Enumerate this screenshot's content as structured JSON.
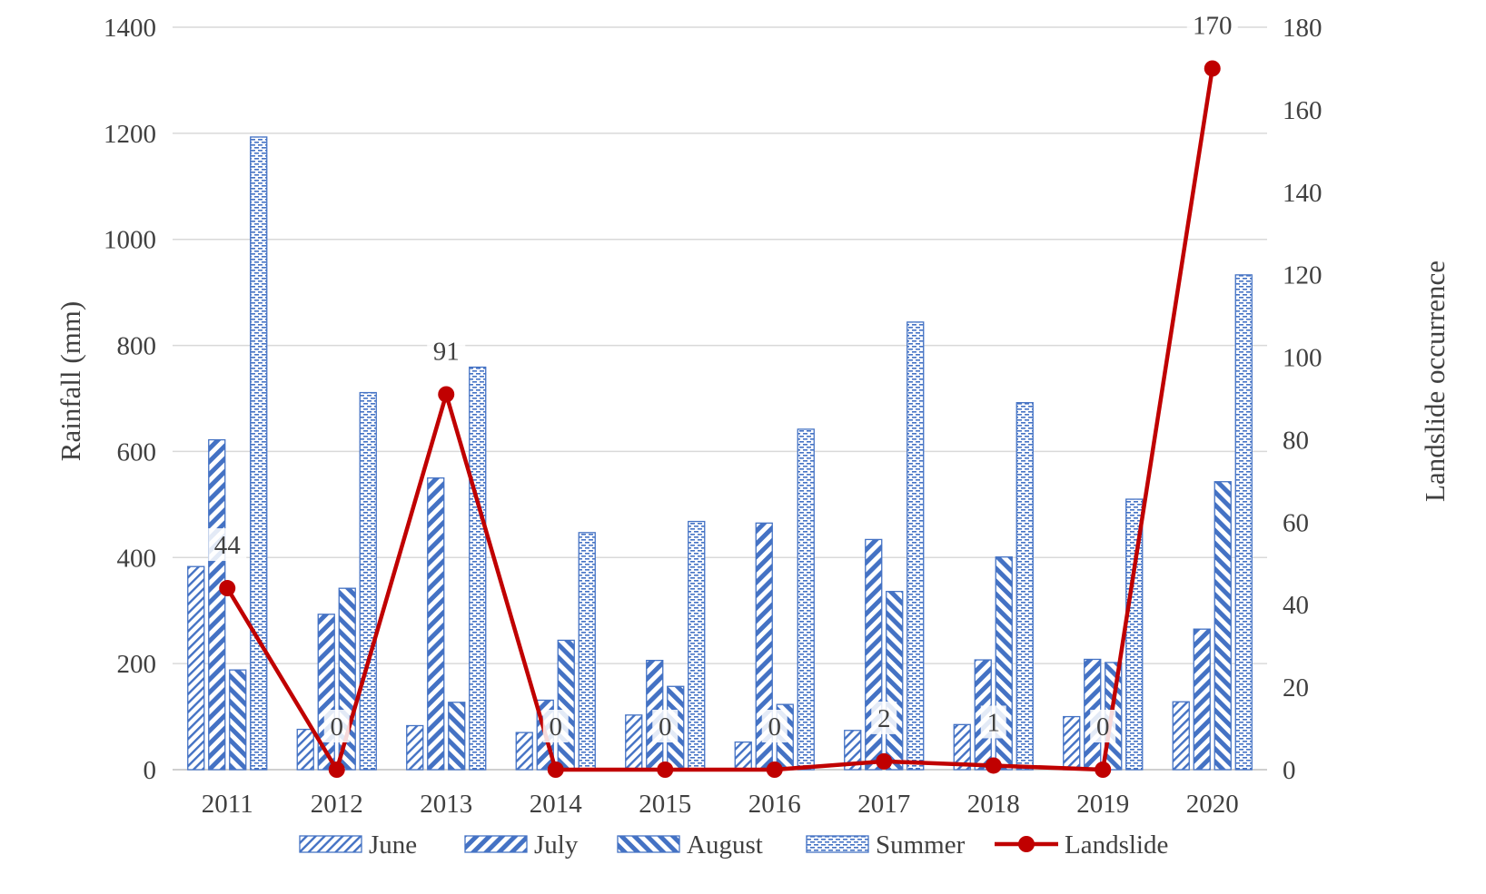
{
  "chart_data": {
    "type": "bar",
    "title": "",
    "xlabel": "",
    "ylabel": "Rainfall (mm)",
    "y2label": "Landslide occurrence",
    "ylim": [
      0,
      1400
    ],
    "y2lim": [
      0,
      180
    ],
    "yticks": [
      "0",
      "200",
      "400",
      "600",
      "800",
      "1000",
      "1200",
      "1400"
    ],
    "y2ticks": [
      "0",
      "20",
      "40",
      "60",
      "80",
      "100",
      "120",
      "140",
      "160",
      "180"
    ],
    "categories": [
      "2011",
      "2012",
      "2013",
      "2014",
      "2015",
      "2016",
      "2017",
      "2018",
      "2019",
      "2020"
    ],
    "grid": "horizontal",
    "legend_position": "bottom",
    "series": [
      {
        "name": "June",
        "type": "bar",
        "pattern": "thin-diagonal",
        "color": "#4472C4",
        "values": [
          383,
          76,
          83,
          70,
          103,
          52,
          74,
          85,
          100,
          128
        ]
      },
      {
        "name": "July",
        "type": "bar",
        "pattern": "wide-upward-diagonal",
        "color": "#4472C4",
        "values": [
          622,
          293,
          550,
          131,
          206,
          465,
          434,
          207,
          208,
          265
        ]
      },
      {
        "name": "August",
        "type": "bar",
        "pattern": "wide-downward-diagonal",
        "color": "#4472C4",
        "values": [
          188,
          342,
          127,
          244,
          157,
          123,
          336,
          401,
          202,
          543
        ]
      },
      {
        "name": "Summer",
        "type": "bar",
        "pattern": "dashed-horizontal",
        "color": "#4472C4",
        "values": [
          1193,
          711,
          759,
          447,
          468,
          642,
          844,
          692,
          510,
          933
        ]
      },
      {
        "name": "Landslide",
        "type": "line",
        "axis": "secondary",
        "color": "#C00000",
        "values": [
          44,
          0,
          91,
          0,
          0,
          0,
          2,
          1,
          0,
          170
        ],
        "labels": [
          "44",
          "0",
          "91",
          "0",
          "0",
          "0",
          "2",
          "1",
          "0",
          "170"
        ]
      }
    ]
  }
}
